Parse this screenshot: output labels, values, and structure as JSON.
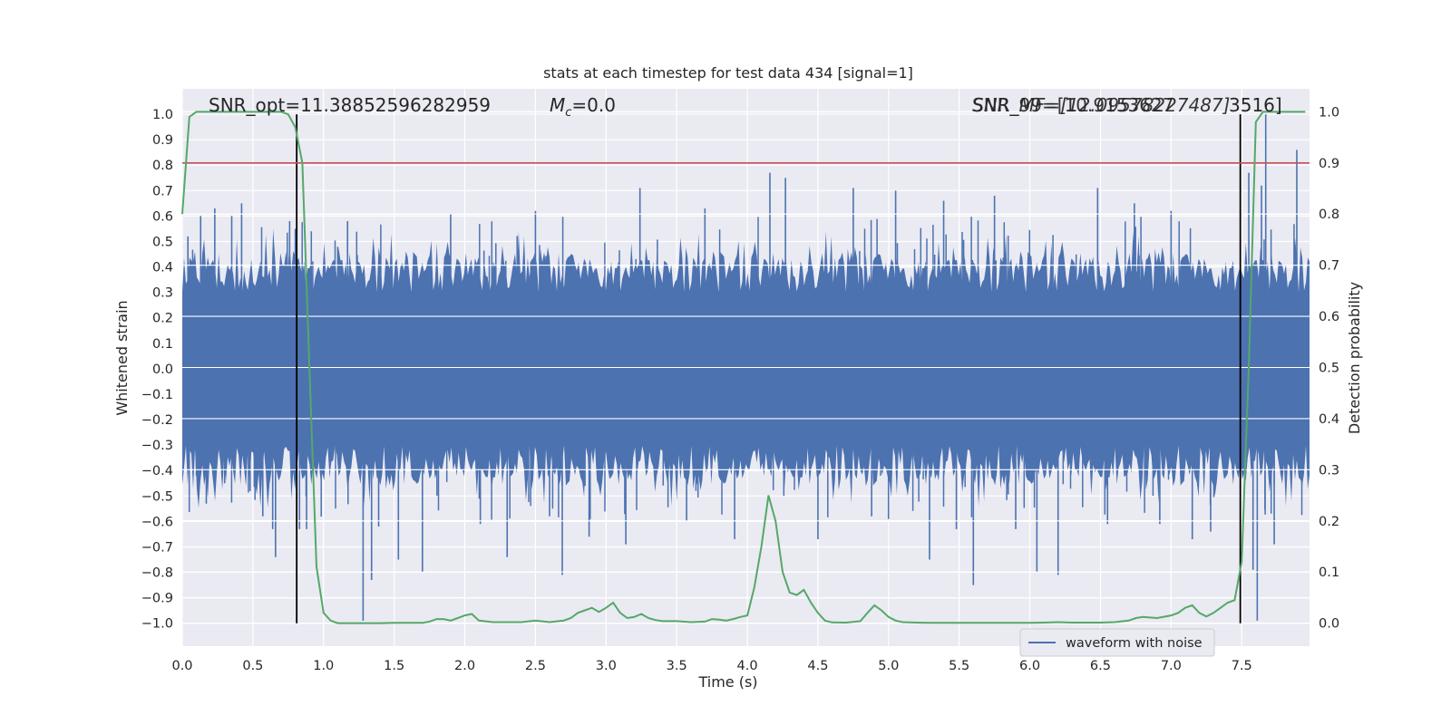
{
  "chart_data": {
    "type": "line",
    "title": "stats at each timestep for test data 434 [signal=1]",
    "xlabel": "Time (s)",
    "ylabel": "Whitened strain",
    "y2label": "Detection probability",
    "xlim": [
      0.0,
      7.98
    ],
    "ylim": [
      -1.09,
      1.1
    ],
    "y2lim": [
      -0.045,
      1.045
    ],
    "x_ticks": [
      "0.0",
      "0.5",
      "1.0",
      "1.5",
      "2.0",
      "2.5",
      "3.0",
      "3.5",
      "4.0",
      "4.5",
      "5.0",
      "5.5",
      "6.0",
      "6.5",
      "7.0",
      "7.5"
    ],
    "y_ticks": [
      "1.0",
      "0.9",
      "0.8",
      "0.7",
      "0.6",
      "0.5",
      "0.4",
      "0.3",
      "0.2",
      "0.1",
      "0.0",
      "−0.1",
      "−0.2",
      "−0.3",
      "−0.4",
      "−0.5",
      "−0.6",
      "−0.7",
      "−0.8",
      "−0.9",
      "−1.0"
    ],
    "y2_ticks": [
      "1.0",
      "0.9",
      "0.8",
      "0.7",
      "0.6",
      "0.5",
      "0.4",
      "0.3",
      "0.2",
      "0.1",
      "0.0"
    ],
    "grid": true,
    "legend_position": "lower right",
    "annotations": {
      "snr_opt": "SNR_opt=11.38852596282959",
      "mc_symbol": "M",
      "mc_sub": "c",
      "mc_value": "=0.0",
      "snr_mf": "SNR_MF=[12.09578227487]",
      "snr_99": "SNR_99=[10.9153627",
      "snr_99_tail": "3516]"
    },
    "vertical_lines_x": [
      0.81,
      7.49
    ],
    "threshold_probability": 0.9,
    "series": [
      {
        "name": "waveform with noise",
        "color": "#4c72b0",
        "peak_spikes": [
          {
            "t": 0.04,
            "v": 0.52
          },
          {
            "t": 0.1,
            "v": -0.42
          },
          {
            "t": 0.13,
            "v": 0.6
          },
          {
            "t": 0.17,
            "v": -0.53
          },
          {
            "t": 0.23,
            "v": 0.63
          },
          {
            "t": 0.3,
            "v": -0.45
          },
          {
            "t": 0.35,
            "v": 0.6
          },
          {
            "t": 0.42,
            "v": 0.65
          },
          {
            "t": 0.48,
            "v": -0.48
          },
          {
            "t": 0.57,
            "v": -0.58
          },
          {
            "t": 0.64,
            "v": -0.63
          },
          {
            "t": 0.66,
            "v": -0.74
          },
          {
            "t": 0.76,
            "v": 0.58
          },
          {
            "t": 0.8,
            "v": 0.55
          },
          {
            "t": 0.83,
            "v": -0.63
          },
          {
            "t": 0.88,
            "v": -0.63
          },
          {
            "t": 1.17,
            "v": 0.58
          },
          {
            "t": 1.28,
            "v": -0.99
          },
          {
            "t": 1.34,
            "v": -0.83
          },
          {
            "t": 1.39,
            "v": -0.62
          },
          {
            "t": 1.53,
            "v": -0.75
          },
          {
            "t": 1.7,
            "v": -0.8
          },
          {
            "t": 1.9,
            "v": 0.61
          },
          {
            "t": 2.11,
            "v": -0.61
          },
          {
            "t": 2.3,
            "v": -0.74
          },
          {
            "t": 2.5,
            "v": 0.62
          },
          {
            "t": 2.6,
            "v": -0.58
          },
          {
            "t": 2.69,
            "v": -0.81
          },
          {
            "t": 2.88,
            "v": -0.66
          },
          {
            "t": 3.14,
            "v": -0.69
          },
          {
            "t": 3.24,
            "v": 0.71
          },
          {
            "t": 3.57,
            "v": -0.6
          },
          {
            "t": 3.7,
            "v": 0.63
          },
          {
            "t": 3.91,
            "v": -0.67
          },
          {
            "t": 4.16,
            "v": 0.77
          },
          {
            "t": 4.27,
            "v": 0.75
          },
          {
            "t": 4.5,
            "v": -0.67
          },
          {
            "t": 4.75,
            "v": 0.71
          },
          {
            "t": 4.88,
            "v": -0.58
          },
          {
            "t": 5.05,
            "v": 0.7
          },
          {
            "t": 5.29,
            "v": -0.75
          },
          {
            "t": 5.39,
            "v": 0.66
          },
          {
            "t": 5.48,
            "v": -0.63
          },
          {
            "t": 5.6,
            "v": -0.85
          },
          {
            "t": 5.75,
            "v": 0.68
          },
          {
            "t": 5.9,
            "v": -0.63
          },
          {
            "t": 6.05,
            "v": -0.8
          },
          {
            "t": 6.2,
            "v": -0.81
          },
          {
            "t": 6.48,
            "v": 0.71
          },
          {
            "t": 6.55,
            "v": -0.61
          },
          {
            "t": 6.74,
            "v": 0.65
          },
          {
            "t": 6.92,
            "v": -0.61
          },
          {
            "t": 7.0,
            "v": 0.62
          },
          {
            "t": 7.15,
            "v": -0.67
          },
          {
            "t": 7.28,
            "v": -0.64
          },
          {
            "t": 7.55,
            "v": 0.77
          },
          {
            "t": 7.58,
            "v": -0.79
          },
          {
            "t": 7.61,
            "v": -0.99
          },
          {
            "t": 7.64,
            "v": 0.72
          },
          {
            "t": 7.67,
            "v": 1.0
          },
          {
            "t": 7.73,
            "v": -0.69
          },
          {
            "t": 7.89,
            "v": 0.86
          }
        ]
      },
      {
        "name": "",
        "color": "#55a868",
        "axis": "right",
        "x": [
          0.0,
          0.05,
          0.1,
          0.2,
          0.3,
          0.4,
          0.5,
          0.6,
          0.7,
          0.75,
          0.8,
          0.85,
          0.9,
          0.95,
          1.0,
          1.05,
          1.1,
          1.2,
          1.3,
          1.4,
          1.5,
          1.6,
          1.7,
          1.75,
          1.8,
          1.85,
          1.9,
          1.95,
          2.0,
          2.05,
          2.1,
          2.2,
          2.3,
          2.4,
          2.5,
          2.6,
          2.7,
          2.75,
          2.8,
          2.85,
          2.9,
          2.95,
          3.0,
          3.05,
          3.1,
          3.15,
          3.2,
          3.25,
          3.3,
          3.35,
          3.4,
          3.5,
          3.6,
          3.7,
          3.75,
          3.8,
          3.85,
          3.9,
          3.95,
          4.0,
          4.05,
          4.1,
          4.15,
          4.2,
          4.25,
          4.3,
          4.35,
          4.4,
          4.45,
          4.5,
          4.55,
          4.6,
          4.7,
          4.8,
          4.85,
          4.9,
          4.95,
          5.0,
          5.05,
          5.1,
          5.2,
          5.3,
          5.4,
          5.5,
          5.6,
          5.7,
          5.8,
          5.9,
          6.0,
          6.1,
          6.2,
          6.3,
          6.4,
          6.5,
          6.6,
          6.7,
          6.75,
          6.8,
          6.9,
          7.0,
          7.05,
          7.1,
          7.15,
          7.2,
          7.25,
          7.3,
          7.35,
          7.4,
          7.45,
          7.5,
          7.55,
          7.6,
          7.65,
          7.7,
          7.8,
          7.9,
          7.95
        ],
        "values": [
          0.8,
          0.99,
          1.0,
          1.0,
          1.0,
          1.0,
          1.0,
          1.0,
          1.0,
          0.995,
          0.97,
          0.9,
          0.5,
          0.11,
          0.02,
          0.005,
          0.0,
          0.0,
          0.0,
          0.0,
          0.0005,
          0.0005,
          0.0005,
          0.003,
          0.008,
          0.008,
          0.005,
          0.01,
          0.015,
          0.018,
          0.005,
          0.002,
          0.002,
          0.002,
          0.005,
          0.002,
          0.005,
          0.01,
          0.02,
          0.025,
          0.03,
          0.022,
          0.03,
          0.04,
          0.02,
          0.01,
          0.012,
          0.018,
          0.01,
          0.006,
          0.004,
          0.004,
          0.002,
          0.003,
          0.008,
          0.007,
          0.005,
          0.008,
          0.012,
          0.015,
          0.07,
          0.15,
          0.25,
          0.2,
          0.1,
          0.06,
          0.055,
          0.065,
          0.04,
          0.02,
          0.005,
          0.0015,
          0.001,
          0.004,
          0.02,
          0.035,
          0.025,
          0.012,
          0.005,
          0.002,
          0.001,
          0.0005,
          0.0005,
          0.0005,
          0.0005,
          0.0005,
          0.0005,
          0.0005,
          0.0005,
          0.001,
          0.002,
          0.001,
          0.001,
          0.001,
          0.002,
          0.005,
          0.01,
          0.012,
          0.01,
          0.015,
          0.02,
          0.03,
          0.035,
          0.02,
          0.013,
          0.02,
          0.03,
          0.04,
          0.045,
          0.12,
          0.5,
          0.98,
          1.0,
          1.0,
          1.0,
          1.0,
          1.0
        ]
      }
    ]
  }
}
